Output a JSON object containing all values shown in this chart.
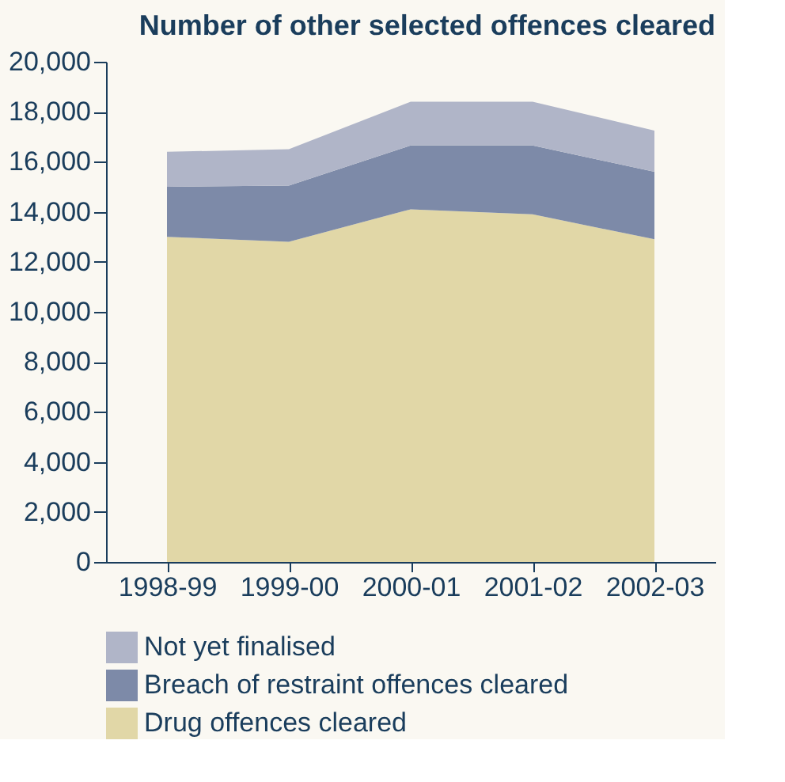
{
  "chart_data": {
    "type": "area",
    "title": "Number of other selected offences cleared",
    "categories": [
      "1998-99",
      "1999-00",
      "2000-01",
      "2001-02",
      "2002-03"
    ],
    "stacked": true,
    "series": [
      {
        "name": "Drug offences cleared",
        "color": "#e1d7a7",
        "values": [
          13000,
          12800,
          14100,
          13900,
          12900
        ]
      },
      {
        "name": "Breach of restraint offences cleared",
        "color": "#7d8aa8",
        "values": [
          2000,
          2250,
          2550,
          2750,
          2700
        ]
      },
      {
        "name": "Not yet finalised",
        "color": "#b0b5c8",
        "values": [
          1400,
          1450,
          1750,
          1750,
          1650
        ]
      }
    ],
    "ylim": [
      0,
      20000
    ],
    "yticks": [
      0,
      {
        "value": 2000,
        "label": "2,000"
      },
      {
        "value": 4000,
        "label": "4,000"
      },
      {
        "value": 6000,
        "label": "6,000"
      },
      {
        "value": 8000,
        "label": "8,000"
      },
      {
        "value": 10000,
        "label": "10,000"
      },
      {
        "value": 12000,
        "label": "12,000"
      },
      {
        "value": 14000,
        "label": "14,000"
      },
      {
        "value": 16000,
        "label": "16,000"
      },
      {
        "value": 18000,
        "label": "18,000"
      },
      {
        "value": 20000,
        "label": "20,000"
      }
    ],
    "grid": false,
    "legend": "bottom"
  }
}
